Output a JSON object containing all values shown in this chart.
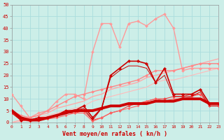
{
  "background_color": "#cceee8",
  "grid_color": "#aadddd",
  "xlabel": "Vent moyen/en rafales ( kn/h )",
  "xlabel_color": "#cc0000",
  "ylabel_yticks": [
    0,
    5,
    10,
    15,
    20,
    25,
    30,
    35,
    40,
    45,
    50
  ],
  "xlim": [
    0,
    23
  ],
  "ylim": [
    0,
    50
  ],
  "x": [
    0,
    1,
    2,
    3,
    4,
    5,
    6,
    7,
    8,
    9,
    10,
    11,
    12,
    13,
    14,
    15,
    16,
    17,
    18,
    19,
    20,
    21,
    22,
    23
  ],
  "lines": [
    {
      "y": [
        12,
        7,
        2,
        4,
        5,
        9,
        12,
        12,
        10,
        30,
        42,
        42,
        32,
        42,
        43,
        41,
        44,
        46,
        40,
        22,
        23,
        23,
        23,
        23
      ],
      "color": "#ff9999",
      "lw": 1.0,
      "marker": "D",
      "ms": 2.0,
      "zorder": 3
    },
    {
      "y": [
        0,
        1,
        2,
        3,
        4,
        6,
        7,
        8,
        9,
        11,
        12,
        14,
        15,
        16,
        17,
        19,
        20,
        21,
        22,
        23,
        24,
        25,
        26,
        27
      ],
      "color": "#ffaaaa",
      "lw": 1.0,
      "marker": null,
      "ms": 0,
      "zorder": 2
    },
    {
      "y": [
        0,
        0.5,
        1,
        2,
        3,
        4,
        5,
        6,
        7,
        9,
        10,
        11,
        12,
        13,
        14,
        15,
        17,
        18,
        18,
        19,
        20,
        21,
        22,
        23
      ],
      "color": "#ffbbbb",
      "lw": 0.8,
      "marker": null,
      "ms": 0,
      "zorder": 2
    },
    {
      "y": [
        5,
        3,
        2,
        3,
        5,
        7,
        9,
        11,
        12,
        13,
        14,
        15,
        16,
        17,
        18,
        20,
        22,
        22,
        22,
        23,
        24,
        25,
        25,
        25
      ],
      "color": "#ff8888",
      "lw": 1.0,
      "marker": "D",
      "ms": 2.0,
      "zorder": 3
    },
    {
      "y": [
        5,
        2,
        1,
        1,
        2,
        3,
        4,
        5,
        5,
        5,
        6,
        7,
        7,
        8,
        8,
        8,
        9,
        9,
        9,
        10,
        10,
        10,
        8,
        8
      ],
      "color": "#cc0000",
      "lw": 2.8,
      "marker": null,
      "ms": 0,
      "zorder": 6
    },
    {
      "y": [
        5,
        1,
        1,
        2,
        2,
        3,
        5,
        5,
        7,
        2,
        6,
        20,
        23,
        26,
        26,
        25,
        17,
        23,
        12,
        12,
        12,
        14,
        8,
        8
      ],
      "color": "#cc0000",
      "lw": 1.2,
      "marker": "D",
      "ms": 2.2,
      "zorder": 5
    },
    {
      "y": [
        4,
        1,
        1,
        2,
        2,
        3,
        4,
        5,
        6,
        1,
        6,
        19,
        22,
        24,
        24,
        23,
        17,
        20,
        11,
        11,
        11,
        13,
        7,
        7
      ],
      "color": "#cc0000",
      "lw": 0.7,
      "marker": null,
      "ms": 0,
      "zorder": 4
    },
    {
      "y": [
        4,
        1,
        1,
        1,
        2,
        3,
        4,
        4,
        5,
        1,
        2,
        4,
        5,
        7,
        8,
        9,
        10,
        10,
        11,
        11,
        12,
        12,
        7,
        7
      ],
      "color": "#ee4444",
      "lw": 0.8,
      "marker": "D",
      "ms": 2.0,
      "zorder": 3
    },
    {
      "y": [
        4,
        1,
        0.5,
        1,
        1.5,
        2,
        3,
        4,
        4,
        0.5,
        2,
        4,
        5,
        6,
        7,
        9,
        10,
        9,
        10,
        10,
        11,
        12,
        7,
        7
      ],
      "color": "#ff6666",
      "lw": 0.8,
      "marker": "D",
      "ms": 1.5,
      "zorder": 3
    }
  ]
}
